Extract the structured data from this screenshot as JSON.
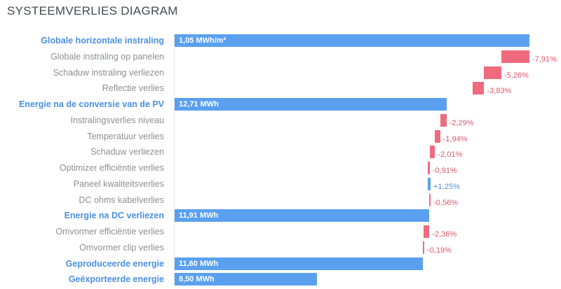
{
  "chart_data": {
    "type": "bar",
    "title": "SYSTEEMVERLIES DIAGRAM",
    "rows": [
      {
        "label": "Globale horizontale instraling",
        "kind": "main",
        "value_text": "1,05 MWh/m²",
        "end": 100
      },
      {
        "label": "Globale instraling op panelen",
        "kind": "loss",
        "pct": "-7,91%",
        "start": 100,
        "end": 92.09
      },
      {
        "label": "Schaduw instraling verliezen",
        "kind": "loss",
        "pct": "-5,26%",
        "start": 92.09,
        "end": 87.25
      },
      {
        "label": "Reflectie verlies",
        "kind": "loss",
        "pct": "-3,83%",
        "start": 87.25,
        "end": 83.9
      },
      {
        "label": "Energie na de conversie van de PV",
        "kind": "main",
        "value_text": "12,71 MWh",
        "end": 76.6
      },
      {
        "label": "Instralingsverlies niveau",
        "kind": "loss",
        "pct": "-2,29%",
        "start": 76.6,
        "end": 74.85
      },
      {
        "label": "Temperatuur verlies",
        "kind": "loss",
        "pct": "-1,94%",
        "start": 74.85,
        "end": 73.4
      },
      {
        "label": "Schaduw verliezen",
        "kind": "loss",
        "pct": "-2,01%",
        "start": 73.4,
        "end": 71.92
      },
      {
        "label": "Optimizer efficiëntie verlies",
        "kind": "loss",
        "pct": "-0,91%",
        "start": 71.92,
        "end": 71.27
      },
      {
        "label": "Paneel kwaliteitsverlies",
        "kind": "gain",
        "pct": "+1,25%",
        "start": 71.27,
        "end": 72.16
      },
      {
        "label": "DC ohms kabelverlies",
        "kind": "loss",
        "pct": "-0,56%",
        "start": 72.16,
        "end": 71.76
      },
      {
        "label": "Energie na DC verliezen",
        "kind": "main",
        "value_text": "11,91 MWh",
        "end": 71.8
      },
      {
        "label": "Omvormer efficiëntie verlies",
        "kind": "loss",
        "pct": "-2,36%",
        "start": 71.8,
        "end": 70.1
      },
      {
        "label": "Omvormer clip verlies",
        "kind": "loss",
        "pct": "-0,19%",
        "start": 70.1,
        "end": 69.97
      },
      {
        "label": "Geproduceerde energie",
        "kind": "main",
        "value_text": "11,60 MWh",
        "end": 69.9
      },
      {
        "label": "Geëxporteerde energie",
        "kind": "main",
        "value_text": "8,50 MWh",
        "end": 40.2
      }
    ]
  }
}
